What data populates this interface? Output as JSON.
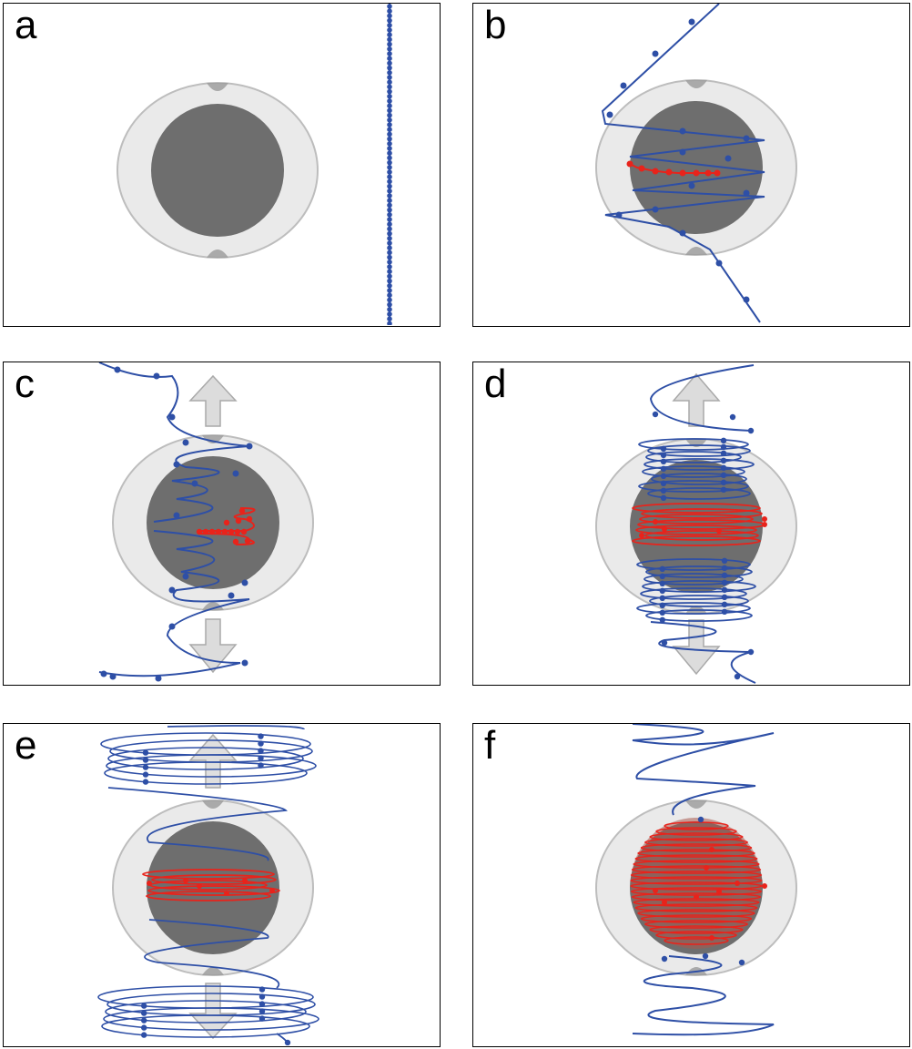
{
  "panels": [
    {
      "id": "a",
      "label": "a",
      "stage": "incoming-straight",
      "arrows": false
    },
    {
      "id": "b",
      "label": "b",
      "stage": "first-capture",
      "arrows": false
    },
    {
      "id": "c",
      "label": "c",
      "stage": "coiling-with-translation",
      "arrows": true
    },
    {
      "id": "d",
      "label": "d",
      "stage": "dense-coiling",
      "arrows": true
    },
    {
      "id": "e",
      "label": "e",
      "stage": "wide-outer-loops",
      "arrows": true
    },
    {
      "id": "f",
      "label": "f",
      "stage": "fully-wrapped",
      "arrows": false
    }
  ],
  "colors": {
    "core": "#6e6e6e",
    "shell": "#d9d9d9",
    "shell_edge": "#bdbdbd",
    "strand": "#2e4fa6",
    "bound": "#e8231b",
    "arrow": "#dcdcdc",
    "arrow_edge": "#a9a9a9",
    "frame": "#000000"
  },
  "icons": {
    "core": "grey-sphere",
    "shell": "translucent-capsule",
    "arrow_up": "up-arrow-icon",
    "arrow_down": "down-arrow-icon"
  }
}
